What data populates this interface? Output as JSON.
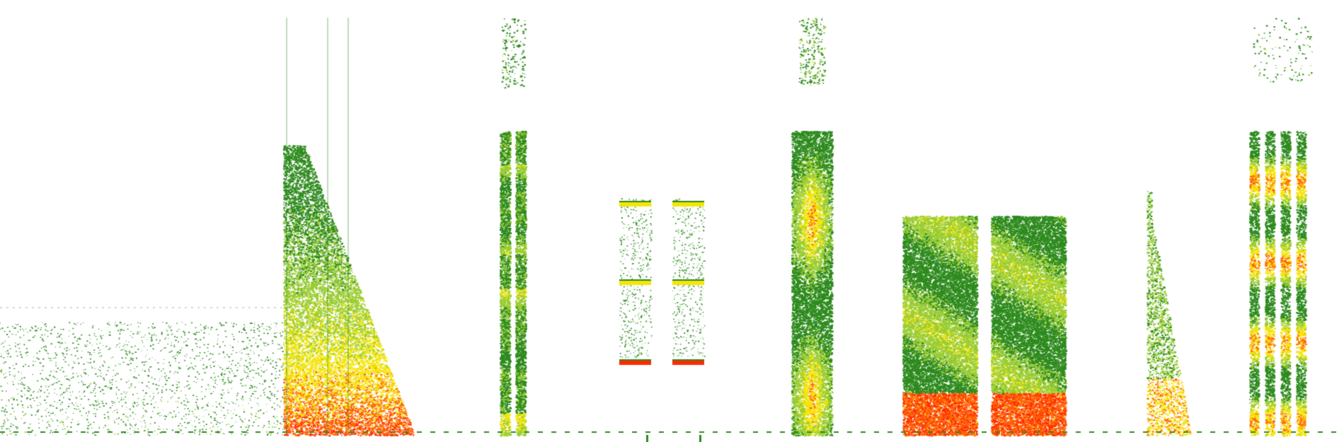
{
  "spectrogram": {
    "background": "#ffffff",
    "colors": {
      "low": "#2e8b1e",
      "mid": "#9acd32",
      "high": "#f5e50a",
      "peak": "#ff6a00",
      "max": "#ff2a00"
    },
    "time_range": [
      0,
      1899
    ],
    "freq_range": [
      0,
      625
    ],
    "events": [
      {
        "type": "noise-floor",
        "t": [
          0,
          400
        ],
        "f": [
          10,
          170
        ],
        "intensity": 0.2
      },
      {
        "type": "broadband-burst",
        "t": [
          400,
          590
        ],
        "f": [
          10,
          420
        ],
        "intensity": 0.85
      },
      {
        "type": "pulse-train",
        "t": [
          712,
          770
        ],
        "f": [
          10,
          600
        ],
        "intensity": 0.65
      },
      {
        "type": "tonal-pair",
        "t": [
          875,
          1000
        ],
        "f": [
          10,
          345
        ],
        "intensity": 0.6
      },
      {
        "type": "vertical-band",
        "t": [
          1118,
          1175
        ],
        "f": [
          10,
          440
        ],
        "intensity": 0.8
      },
      {
        "type": "double-block",
        "t": [
          1275,
          1505
        ],
        "f": [
          10,
          320
        ],
        "intensity": 0.9
      },
      {
        "type": "tapering-burst",
        "t": [
          1620,
          1685
        ],
        "f": [
          10,
          355
        ],
        "intensity": 0.75
      },
      {
        "type": "quad-pulses",
        "t": [
          1770,
          1855
        ],
        "f": [
          10,
          440
        ],
        "intensity": 0.8
      }
    ]
  }
}
